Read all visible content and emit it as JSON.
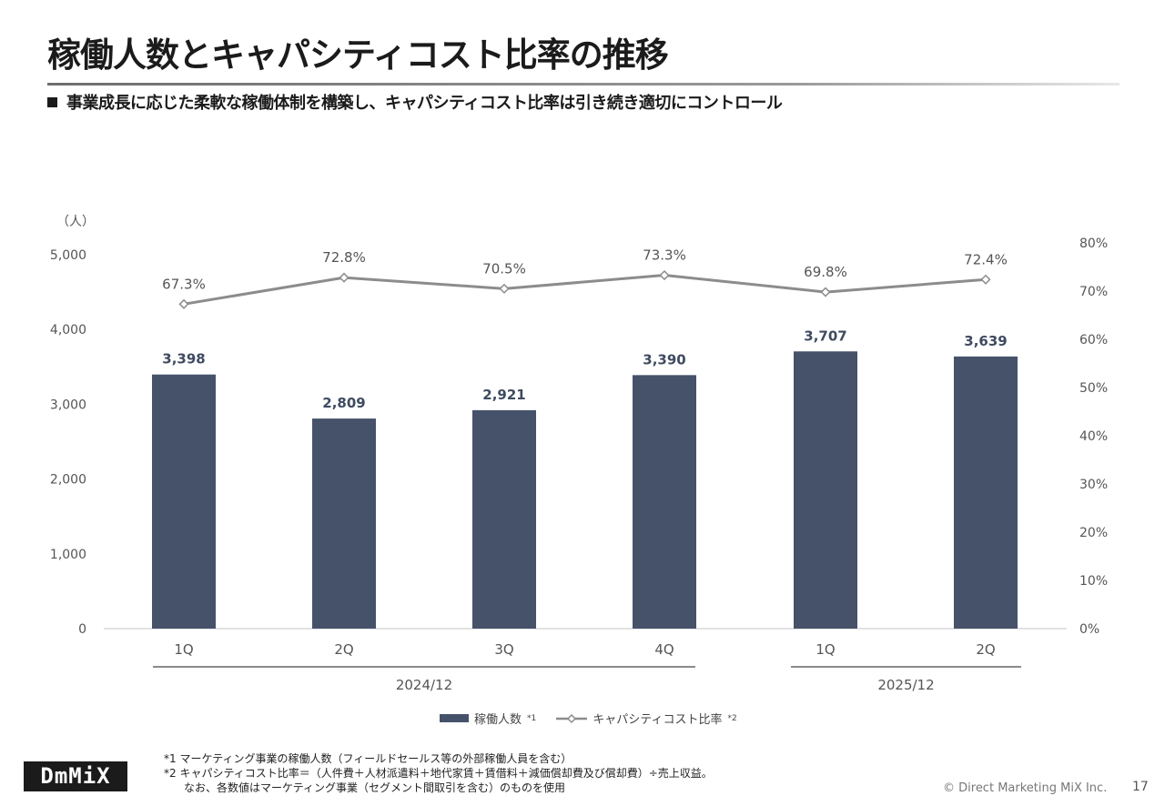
{
  "slide": {
    "title": "稼働人数とキャパシティコスト比率の推移",
    "subtitle": "事業成長に応じた柔軟な稼働体制を構築し、キャパシティコスト比率は引き続き適切にコントロール",
    "logo_text": "DmMiX",
    "notes": [
      "*1  マーケティング事業の稼働人数（フィールドセールス等の外部稼働人員を含む）",
      "*2  キャパシティコスト比率＝（人件費＋人材派遣料＋地代家賃＋賃借料＋減価償却費及び償却費）÷売上収益。",
      "なお、各数値はマーケティング事業（セグメント間取引を含む）のものを使用"
    ],
    "copyright": "© Direct Marketing MiX Inc.",
    "page_number": "17"
  },
  "chart_data": {
    "type": "bar",
    "left_unit": "（人）",
    "categories": [
      "1Q",
      "2Q",
      "3Q",
      "4Q",
      "1Q",
      "2Q"
    ],
    "groups": [
      {
        "label": "2024/12",
        "categories": [
          "1Q",
          "2Q",
          "3Q",
          "4Q"
        ]
      },
      {
        "label": "2025/12",
        "categories": [
          "1Q",
          "2Q"
        ]
      }
    ],
    "series": [
      {
        "name": "稼働人数",
        "note_mark": "*1",
        "type": "bar",
        "axis": "left",
        "color": "#45526a",
        "values": [
          3398,
          2809,
          2921,
          3390,
          3707,
          3639
        ],
        "labels": [
          "3,398",
          "2,809",
          "2,921",
          "3,390",
          "3,707",
          "3,639"
        ]
      },
      {
        "name": "キャパシティコスト比率",
        "note_mark": "*2",
        "type": "line",
        "axis": "right",
        "color": "#8c8c8c",
        "values": [
          67.3,
          72.8,
          70.5,
          73.3,
          69.8,
          72.4
        ],
        "labels": [
          "67.3%",
          "72.8%",
          "70.5%",
          "73.3%",
          "69.8%",
          "72.4%"
        ]
      }
    ],
    "left_axis": {
      "min": 0,
      "max": 5000,
      "ticks": [
        "0",
        "1,000",
        "2,000",
        "3,000",
        "4,000",
        "5,000"
      ]
    },
    "right_axis": {
      "min": 0,
      "max": 80,
      "ticks": [
        "0%",
        "10%",
        "20%",
        "30%",
        "40%",
        "50%",
        "60%",
        "70%",
        "80%"
      ]
    },
    "grid": false,
    "legend_position": "bottom"
  }
}
